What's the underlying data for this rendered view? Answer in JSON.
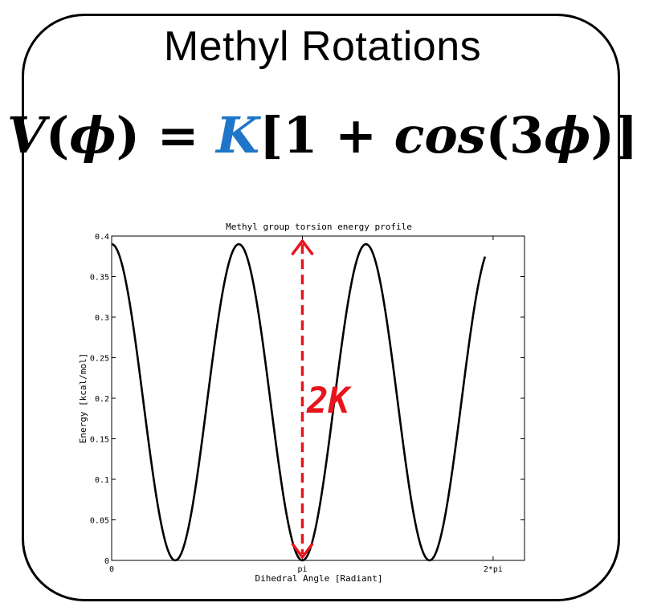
{
  "heading": "Methyl Rotations",
  "formula": {
    "lhs_func": "V",
    "lhs_open": "(",
    "lhs_var": "ϕ",
    "lhs_close": ")",
    "equals": " = ",
    "coef": "K",
    "open": "[",
    "one": "1",
    "plus": " + ",
    "cos": "cos",
    "inner_open": "(",
    "three": "3",
    "var": "ϕ",
    "inner_close": ")",
    "close": "]",
    "coef_color": "#1f75c8"
  },
  "chart_data": {
    "type": "line",
    "title": "Methyl group torsion energy profile",
    "xlabel": "Dihedral Angle [Radiant]",
    "ylabel": "Energy [kcal/mol]",
    "xlim": [
      0,
      6.8
    ],
    "ylim": [
      0,
      0.4
    ],
    "x_ticks": [
      {
        "value": 0,
        "label": "0"
      },
      {
        "value": 3.14159,
        "label": "pi"
      },
      {
        "value": 6.28318,
        "label": "2*pi"
      }
    ],
    "y_ticks": [
      {
        "value": 0,
        "label": "0"
      },
      {
        "value": 0.05,
        "label": "0.05"
      },
      {
        "value": 0.1,
        "label": "0.1"
      },
      {
        "value": 0.15,
        "label": "0.15"
      },
      {
        "value": 0.2,
        "label": "0.2"
      },
      {
        "value": 0.25,
        "label": "0.25"
      },
      {
        "value": 0.3,
        "label": "0.3"
      },
      {
        "value": 0.35,
        "label": "0.35"
      },
      {
        "value": 0.4,
        "label": "0.4"
      }
    ],
    "series": [
      {
        "K": 0.195,
        "x_start": 0,
        "x_end": 6.15,
        "color": "#000000"
      }
    ],
    "annotation": {
      "label": "2K",
      "x": 3.14159,
      "y_from": 0,
      "y_to": 0.39,
      "color": "#e8141c"
    },
    "grid": false
  }
}
